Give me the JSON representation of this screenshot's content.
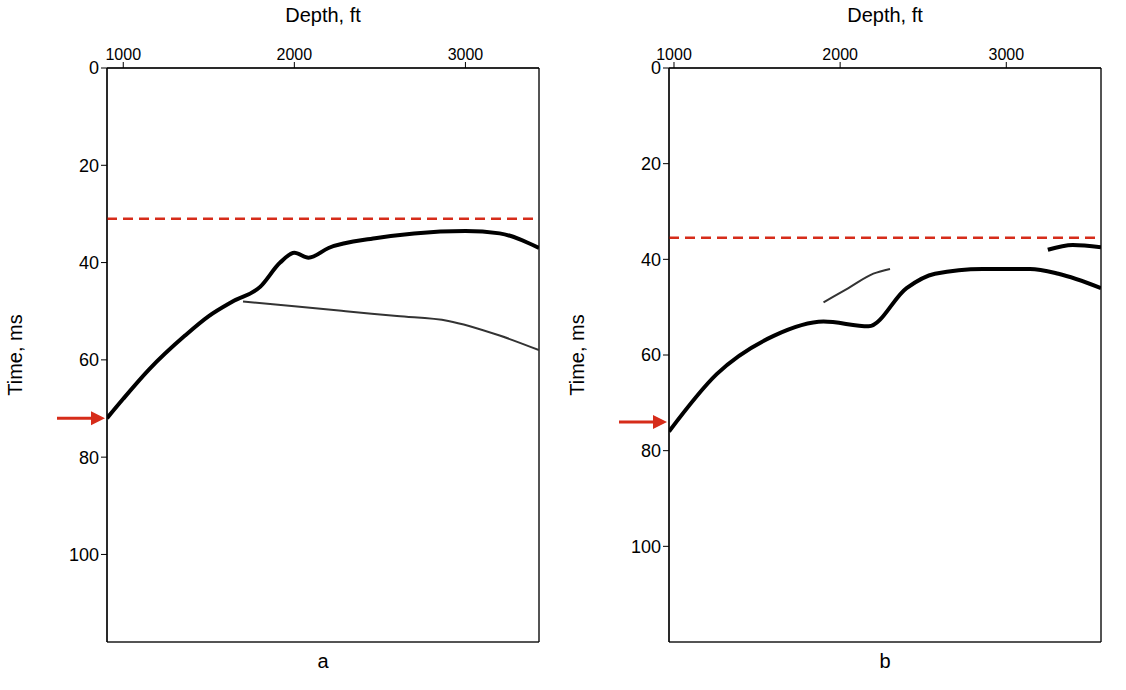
{
  "chart_data": [
    {
      "type": "line",
      "title": "a",
      "xlabel": "Depth, ft",
      "ylabel": "Time, ms",
      "xlim": [
        905,
        3430
      ],
      "xticks": [
        1000,
        2000,
        3000
      ],
      "ylim": [
        118,
        0
      ],
      "yticks": [
        0,
        20,
        40,
        60,
        80,
        100
      ],
      "grid": true,
      "series": [
        {
          "color": "#000000",
          "line_style": "solid",
          "x": [
            905,
            1000,
            1150,
            1361,
            1500,
            1639,
            1800,
            1917,
            2000,
            2083,
            2200,
            2472,
            2700,
            3000,
            3200,
            3430
          ],
          "values": [
            72,
            68,
            62,
            55,
            51,
            48,
            45,
            40,
            38,
            39,
            37,
            35,
            34,
            33.5,
            34,
            37
          ]
        },
        {
          "color": "#333333",
          "line_style": "solid",
          "x": [
            1700,
            2000,
            2300,
            2600,
            2900,
            3200,
            3430
          ],
          "values": [
            48,
            49,
            50,
            51,
            52,
            55,
            58
          ]
        }
      ],
      "annotations": [
        {
          "type": "hline",
          "y": 31,
          "color": "#d62c1a",
          "line_style": "dashed"
        },
        {
          "type": "arrow",
          "y": 72,
          "color": "#d62c1a"
        }
      ]
    },
    {
      "type": "line",
      "title": "b",
      "xlabel": "Depth, ft",
      "ylabel": "Time, ms",
      "xlim": [
        970,
        3570
      ],
      "xticks": [
        1000,
        2000,
        3000
      ],
      "ylim": [
        120,
        0
      ],
      "yticks": [
        0,
        20,
        40,
        60,
        80,
        100
      ],
      "grid": true,
      "series": [
        {
          "color": "#000000",
          "line_style": "solid",
          "x": [
            970,
            1257,
            1600,
            1900,
            2171,
            2400,
            2571,
            2857,
            3143,
            3314,
            3570
          ],
          "values": [
            76,
            64,
            56,
            53,
            54,
            46,
            43,
            42,
            42,
            43,
            46
          ]
        },
        {
          "color": "#333333",
          "line_style": "solid",
          "x": [
            1900,
            2050,
            2200,
            2300
          ],
          "values": [
            49,
            46,
            43,
            42
          ]
        },
        {
          "color": "#000000",
          "line_style": "solid",
          "x": [
            3250,
            3400,
            3570
          ],
          "values": [
            38,
            37,
            37.5
          ]
        }
      ],
      "annotations": [
        {
          "type": "hline",
          "y": 35.5,
          "color": "#d62c1a",
          "line_style": "dashed"
        },
        {
          "type": "arrow",
          "y": 74,
          "color": "#d62c1a"
        }
      ]
    }
  ]
}
